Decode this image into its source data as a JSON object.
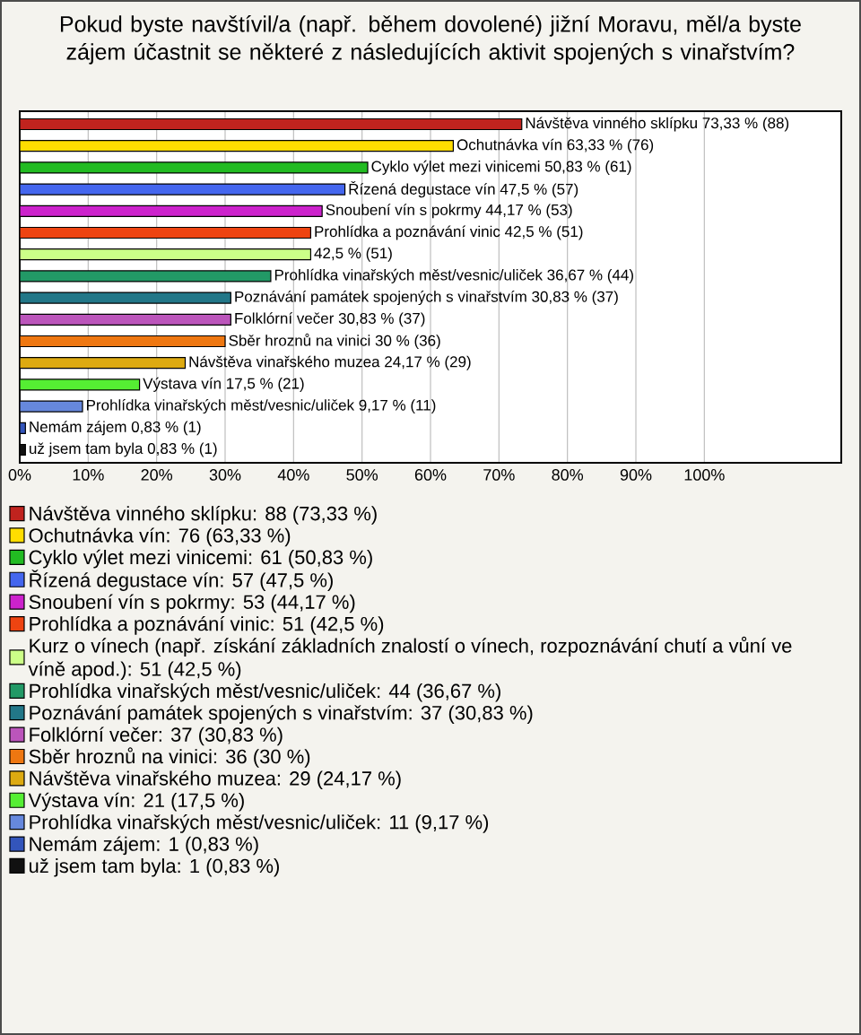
{
  "chart_data": {
    "type": "bar",
    "orientation": "horizontal",
    "title": "Pokud byste navštívil/a (např. během dovolené) jižní Moravu, měl/a byste zájem účastnit se některé z následujících aktivit spojených s vinařstvím?",
    "categories": [
      null,
      null,
      null,
      null,
      null,
      null,
      null,
      null,
      null,
      null,
      null,
      null,
      null,
      null,
      null,
      null
    ],
    "series": [
      {
        "name": "Návštěva vinného sklípku: 88 (73,33 %)",
        "color": "#c0231e",
        "values": [
          73.33,
          null,
          null,
          null,
          null,
          null,
          null,
          null,
          null,
          null,
          null,
          null,
          null,
          null,
          null,
          null
        ],
        "value_labels": [
          "Návštěva vinného sklípku 73,33 % (88)",
          null,
          null,
          null,
          null,
          null,
          null,
          null,
          null,
          null,
          null,
          null,
          null,
          null,
          null,
          null
        ]
      },
      {
        "name": "Ochutnávka vín: 76 (63,33 %)",
        "color": "#ffdd00",
        "values": [
          null,
          63.33,
          null,
          null,
          null,
          null,
          null,
          null,
          null,
          null,
          null,
          null,
          null,
          null,
          null,
          null
        ],
        "value_labels": [
          null,
          "Ochutnávka vín 63,33 % (76)",
          null,
          null,
          null,
          null,
          null,
          null,
          null,
          null,
          null,
          null,
          null,
          null,
          null,
          null
        ]
      },
      {
        "name": "Cyklo výlet mezi vinicemi: 61 (50,83 %)",
        "color": "#22bb22",
        "values": [
          null,
          null,
          50.83,
          null,
          null,
          null,
          null,
          null,
          null,
          null,
          null,
          null,
          null,
          null,
          null,
          null
        ],
        "value_labels": [
          null,
          null,
          "Cyklo výlet mezi vinicemi 50,83 % (61)",
          null,
          null,
          null,
          null,
          null,
          null,
          null,
          null,
          null,
          null,
          null,
          null,
          null
        ]
      },
      {
        "name": "Řízená degustace vín: 57 (47,5 %)",
        "color": "#4466ee",
        "values": [
          null,
          null,
          null,
          47.5,
          null,
          null,
          null,
          null,
          null,
          null,
          null,
          null,
          null,
          null,
          null,
          null
        ],
        "value_labels": [
          null,
          null,
          null,
          "Řízená degustace vín 47,5 % (57)",
          null,
          null,
          null,
          null,
          null,
          null,
          null,
          null,
          null,
          null,
          null,
          null
        ]
      },
      {
        "name": "Snoubení vín s pokrmy: 53 (44,17 %)",
        "color": "#cc22cc",
        "values": [
          null,
          null,
          null,
          null,
          44.17,
          null,
          null,
          null,
          null,
          null,
          null,
          null,
          null,
          null,
          null,
          null
        ],
        "value_labels": [
          null,
          null,
          null,
          null,
          "Snoubení vín s pokrmy 44,17 % (53)",
          null,
          null,
          null,
          null,
          null,
          null,
          null,
          null,
          null,
          null,
          null
        ]
      },
      {
        "name": "Prohlídka a poznávání vinic: 51 (42,5 %)",
        "color": "#ee4411",
        "values": [
          null,
          null,
          null,
          null,
          null,
          42.5,
          null,
          null,
          null,
          null,
          null,
          null,
          null,
          null,
          null,
          null
        ],
        "value_labels": [
          null,
          null,
          null,
          null,
          null,
          "Prohlídka a poznávání vinic 42,5 % (51)",
          null,
          null,
          null,
          null,
          null,
          null,
          null,
          null,
          null,
          null
        ]
      },
      {
        "name": "Kurz o vínech (např. získání základních znalostí o vínech, rozpoznávání chutí a vůní ve víně apod.): 51 (42,5 %)",
        "color": "#ccff88",
        "values": [
          null,
          null,
          null,
          null,
          null,
          null,
          42.5,
          null,
          null,
          null,
          null,
          null,
          null,
          null,
          null,
          null
        ],
        "value_labels": [
          null,
          null,
          null,
          null,
          null,
          null,
          "42,5 % (51)",
          null,
          null,
          null,
          null,
          null,
          null,
          null,
          null,
          null
        ]
      },
      {
        "name": "Prohlídka vinařských měst/vesnic/uliček: 44 (36,67 %)",
        "color": "#229966",
        "values": [
          null,
          null,
          null,
          null,
          null,
          null,
          null,
          36.67,
          null,
          null,
          null,
          null,
          null,
          null,
          null,
          null
        ],
        "value_labels": [
          null,
          null,
          null,
          null,
          null,
          null,
          null,
          "Prohlídka vinařských měst/vesnic/uliček 36,67 % (44)",
          null,
          null,
          null,
          null,
          null,
          null,
          null,
          null
        ]
      },
      {
        "name": "Poznávání památek spojených s vinařstvím: 37 (30,83 %)",
        "color": "#227788",
        "values": [
          null,
          null,
          null,
          null,
          null,
          null,
          null,
          null,
          30.83,
          null,
          null,
          null,
          null,
          null,
          null,
          null
        ],
        "value_labels": [
          null,
          null,
          null,
          null,
          null,
          null,
          null,
          null,
          "Poznávání památek spojených s vinařstvím 30,83 % (37)",
          null,
          null,
          null,
          null,
          null,
          null,
          null
        ]
      },
      {
        "name": "Folklórní večer: 37 (30,83 %)",
        "color": "#bb55bb",
        "values": [
          null,
          null,
          null,
          null,
          null,
          null,
          null,
          null,
          null,
          30.83,
          null,
          null,
          null,
          null,
          null,
          null
        ],
        "value_labels": [
          null,
          null,
          null,
          null,
          null,
          null,
          null,
          null,
          null,
          "Folklórní večer 30,83 % (37)",
          null,
          null,
          null,
          null,
          null,
          null
        ]
      },
      {
        "name": "Sběr hroznů na vinici: 36 (30 %)",
        "color": "#ee7711",
        "values": [
          null,
          null,
          null,
          null,
          null,
          null,
          null,
          null,
          null,
          null,
          30,
          null,
          null,
          null,
          null,
          null
        ],
        "value_labels": [
          null,
          null,
          null,
          null,
          null,
          null,
          null,
          null,
          null,
          null,
          "Sběr hroznů na vinici 30 % (36)",
          null,
          null,
          null,
          null,
          null
        ]
      },
      {
        "name": "Návštěva vinařského muzea: 29 (24,17 %)",
        "color": "#ddaa11",
        "values": [
          null,
          null,
          null,
          null,
          null,
          null,
          null,
          null,
          null,
          null,
          null,
          24.17,
          null,
          null,
          null,
          null
        ],
        "value_labels": [
          null,
          null,
          null,
          null,
          null,
          null,
          null,
          null,
          null,
          null,
          null,
          "Návštěva vinařského muzea 24,17 % (29)",
          null,
          null,
          null,
          null
        ]
      },
      {
        "name": "Výstava vín: 21 (17,5 %)",
        "color": "#55ee33",
        "values": [
          null,
          null,
          null,
          null,
          null,
          null,
          null,
          null,
          null,
          null,
          null,
          null,
          17.5,
          null,
          null,
          null
        ],
        "value_labels": [
          null,
          null,
          null,
          null,
          null,
          null,
          null,
          null,
          null,
          null,
          null,
          null,
          "Výstava vín 17,5 % (21)",
          null,
          null,
          null
        ]
      },
      {
        "name": "Prohlídka vinařských měst/vesnic/uliček: 11 (9,17 %)",
        "color": "#6688dd",
        "values": [
          null,
          null,
          null,
          null,
          null,
          null,
          null,
          null,
          null,
          null,
          null,
          null,
          null,
          9.17,
          null,
          null
        ],
        "value_labels": [
          null,
          null,
          null,
          null,
          null,
          null,
          null,
          null,
          null,
          null,
          null,
          null,
          null,
          "Prohlídka vinařských měst/vesnic/uliček 9,17 % (11)",
          null,
          null
        ]
      },
      {
        "name": "Nemám zájem: 1 (0,83 %)",
        "color": "#3355bb",
        "values": [
          null,
          null,
          null,
          null,
          null,
          null,
          null,
          null,
          null,
          null,
          null,
          null,
          null,
          null,
          0.83,
          null
        ],
        "value_labels": [
          null,
          null,
          null,
          null,
          null,
          null,
          null,
          null,
          null,
          null,
          null,
          null,
          null,
          null,
          "Nemám zájem 0,83 % (1)",
          null
        ]
      },
      {
        "name": "už jsem tam byla: 1 (0,83 %)",
        "color": "#111111",
        "values": [
          null,
          null,
          null,
          null,
          null,
          null,
          null,
          null,
          null,
          null,
          null,
          null,
          null,
          null,
          null,
          0.83
        ],
        "value_labels": [
          null,
          null,
          null,
          null,
          null,
          null,
          null,
          null,
          null,
          null,
          null,
          null,
          null,
          null,
          null,
          "už jsem tam byla 0,83 % (1)"
        ]
      }
    ],
    "xlim": [
      0,
      120
    ],
    "xticks": [
      {
        "value": 0,
        "label": "0%"
      },
      {
        "value": 10,
        "label": "10%"
      },
      {
        "value": 20,
        "label": "20%"
      },
      {
        "value": 30,
        "label": "30%"
      },
      {
        "value": 40,
        "label": "40%"
      },
      {
        "value": 50,
        "label": "50%"
      },
      {
        "value": 60,
        "label": "60%"
      },
      {
        "value": 70,
        "label": "70%"
      },
      {
        "value": 80,
        "label": "80%"
      },
      {
        "value": 90,
        "label": "90%"
      },
      {
        "value": 100,
        "label": "100%"
      }
    ],
    "grid": "x",
    "legend": "bottom",
    "tick_labels": "x"
  }
}
